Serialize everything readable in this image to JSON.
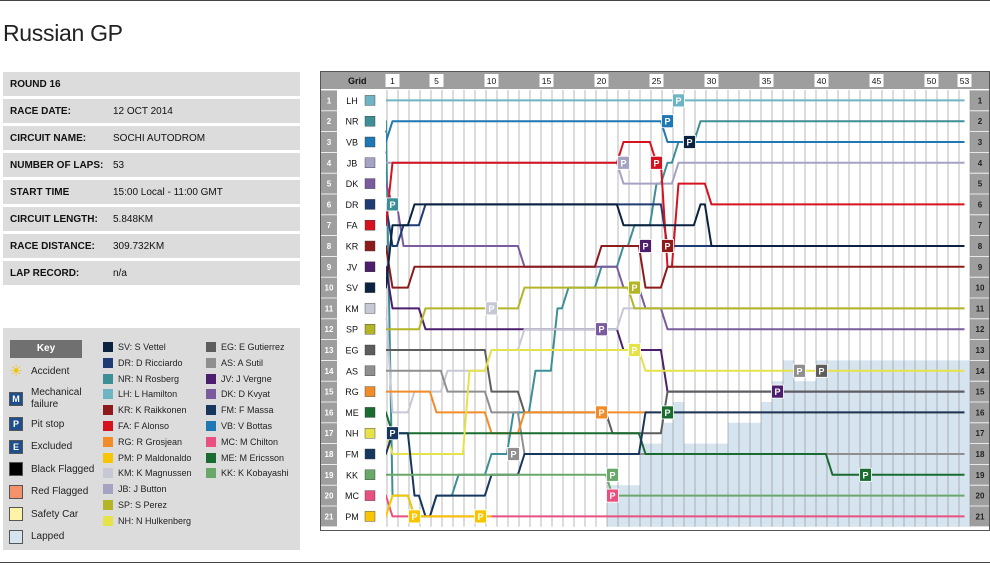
{
  "title": "Russian GP",
  "info": [
    {
      "label": "ROUND 16",
      "value": ""
    },
    {
      "label": "RACE DATE:",
      "value": "12 OCT 2014"
    },
    {
      "label": "CIRCUIT NAME:",
      "value": "SOCHI AUTODROM"
    },
    {
      "label": "NUMBER OF LAPS:",
      "value": "53"
    },
    {
      "label": "START TIME",
      "value": "15:00 Local - 11:00 GMT"
    },
    {
      "label": "CIRCUIT LENGTH:",
      "value": "5.848KM"
    },
    {
      "label": "RACE DISTANCE:",
      "value": "309.732KM"
    },
    {
      "label": "LAP RECORD:",
      "value": "n/a"
    }
  ],
  "key": {
    "title": "Key",
    "items": [
      {
        "label": "Accident",
        "symbol": "☀",
        "color": "#f2c200",
        "icon": "accident-icon"
      },
      {
        "label": "Mechanical failure",
        "symbol": "M",
        "color": "#1f4e8c",
        "icon": "mechanical-failure-icon"
      },
      {
        "label": "Pit stop",
        "symbol": "P",
        "color": "#1f4e8c",
        "icon": "pit-stop-icon"
      },
      {
        "label": "Excluded",
        "symbol": "E",
        "color": "#1f4e8c",
        "icon": "excluded-icon"
      },
      {
        "label": "Black Flagged",
        "symbol": "",
        "color": "#000000",
        "icon": "black-flag-icon"
      },
      {
        "label": "Red Flagged",
        "symbol": "",
        "color": "#f4926b",
        "icon": "red-flag-icon"
      },
      {
        "label": "Safety Car",
        "symbol": "",
        "color": "#fdf3a6",
        "icon": "safety-car-icon"
      },
      {
        "label": "Lapped",
        "symbol": "",
        "color": "#d6e4f0",
        "icon": "lapped-icon"
      }
    ],
    "drivers_col1": [
      {
        "label": "SV: S Vettel",
        "color": "#0b2341"
      },
      {
        "label": "DR: D Ricciardo",
        "color": "#1e3b73"
      },
      {
        "label": "NR: N Rosberg",
        "color": "#3d8f95"
      },
      {
        "label": "LH: L Hamilton",
        "color": "#6fb4c4"
      },
      {
        "label": "KR: K Raikkonen",
        "color": "#8e1b1b"
      },
      {
        "label": "FA: F Alonso",
        "color": "#d7121f"
      },
      {
        "label": "RG: R Grosjean",
        "color": "#f28c28"
      },
      {
        "label": "PM: P Maldonaldo",
        "color": "#f7c600"
      },
      {
        "label": "KM: K Magnussen",
        "color": "#c7c8d6"
      },
      {
        "label": "JB: J Button",
        "color": "#a5a3c3"
      },
      {
        "label": "SP: S Perez",
        "color": "#b3b527"
      },
      {
        "label": "NH: N Hulkenberg",
        "color": "#e6e24a"
      }
    ],
    "drivers_col2": [
      {
        "label": "EG: E Gutierrez",
        "color": "#5d5d5d"
      },
      {
        "label": "AS: A Sutil",
        "color": "#8f8f8f"
      },
      {
        "label": "JV: J Vergne",
        "color": "#4b1f6e"
      },
      {
        "label": "DK: D Kvyat",
        "color": "#7a5c9e"
      },
      {
        "label": "FM: F Massa",
        "color": "#17375e"
      },
      {
        "label": "VB: V Bottas",
        "color": "#1f77b4"
      },
      {
        "label": "MC: M Chilton",
        "color": "#e8517f"
      },
      {
        "label": "ME: M Ericsson",
        "color": "#1a6b2f"
      },
      {
        "label": "KK: K Kobayashi",
        "color": "#6aa86a"
      }
    ]
  },
  "chart_data": {
    "type": "line",
    "title": "",
    "x_header": "Grid",
    "laps": 53,
    "lap_ticks": [
      1,
      5,
      10,
      15,
      20,
      25,
      30,
      35,
      40,
      45,
      50,
      53
    ],
    "positions": [
      1,
      2,
      3,
      4,
      5,
      6,
      7,
      8,
      9,
      10,
      11,
      12,
      13,
      14,
      15,
      16,
      17,
      18,
      19,
      20,
      21
    ],
    "grid": [
      "LH",
      "NR",
      "VB",
      "JB",
      "DK",
      "DR",
      "FA",
      "KR",
      "JV",
      "SV",
      "KM",
      "SP",
      "EG",
      "AS",
      "RG",
      "ME",
      "NH",
      "FM",
      "KK",
      "MC",
      "PM"
    ],
    "colors": {
      "LH": "#6fb4c4",
      "NR": "#3d8f95",
      "VB": "#1f77b4",
      "JB": "#a5a3c3",
      "DK": "#7a5c9e",
      "DR": "#1e3b73",
      "FA": "#d7121f",
      "KR": "#8e1b1b",
      "JV": "#4b1f6e",
      "SV": "#0b2341",
      "KM": "#c7c8d6",
      "SP": "#b3b527",
      "EG": "#5d5d5d",
      "AS": "#8f8f8f",
      "RG": "#f28c28",
      "ME": "#1a6b2f",
      "NH": "#e6e24a",
      "FM": "#17375e",
      "KK": "#6aa86a",
      "MC": "#e8517f",
      "PM": "#f7c600"
    },
    "series": [
      {
        "name": "LH",
        "positions": {
          "0": 1,
          "53": 1
        }
      },
      {
        "name": "NR",
        "positions": {
          "0": 2,
          "1": 20,
          "3": 21,
          "5": 20,
          "7": 19,
          "10": 18,
          "12": 16,
          "14": 14,
          "16": 11,
          "17": 10,
          "20": 9,
          "22": 8,
          "23": 7,
          "25": 5,
          "26": 4,
          "27": 3,
          "29": 2,
          "53": 2
        }
      },
      {
        "name": "VB",
        "positions": {
          "0": 3,
          "1": 2,
          "25": 2,
          "26": 3,
          "28": 3,
          "29": 3,
          "53": 3
        }
      },
      {
        "name": "JB",
        "positions": {
          "0": 4,
          "1": 4,
          "21": 4,
          "22": 5,
          "26": 5,
          "27": 4,
          "53": 4
        }
      },
      {
        "name": "DK",
        "positions": {
          "0": 5,
          "1": 6,
          "2": 8,
          "5": 8,
          "10": 8,
          "13": 9,
          "20": 9,
          "22": 10,
          "24": 11,
          "26": 12,
          "30": 12,
          "53": 12
        }
      },
      {
        "name": "DR",
        "positions": {
          "0": 6,
          "1": 8,
          "2": 7,
          "4": 6,
          "20": 6,
          "21": 6,
          "25": 6,
          "26": 8,
          "53": 8
        }
      },
      {
        "name": "FA",
        "positions": {
          "0": 7,
          "1": 4,
          "21": 4,
          "22": 3,
          "24": 3,
          "25": 4,
          "26": 9,
          "27": 5,
          "29": 5,
          "30": 6,
          "53": 6
        }
      },
      {
        "name": "KR",
        "positions": {
          "0": 8,
          "1": 10,
          "3": 9,
          "5": 9,
          "20": 8,
          "22": 8,
          "24": 10,
          "26": 9,
          "53": 9
        }
      },
      {
        "name": "JV",
        "positions": {
          "0": 9,
          "1": 11,
          "4": 12,
          "20": 12,
          "22": 13,
          "24": 13,
          "26": 15,
          "53": 15
        }
      },
      {
        "name": "SV",
        "positions": {
          "0": 10,
          "1": 7,
          "3": 6,
          "4": 6,
          "20": 6,
          "22": 7,
          "24": 7,
          "26": 7,
          "29": 6,
          "30": 8,
          "53": 8
        }
      },
      {
        "name": "KM",
        "positions": {
          "0": 11,
          "1": 16,
          "3": 15,
          "6": 14,
          "10": 13,
          "13": 12,
          "20": 12,
          "22": 11,
          "24": 11,
          "26": 11,
          "53": 11
        }
      },
      {
        "name": "SP",
        "positions": {
          "0": 12,
          "1": 12,
          "4": 11,
          "10": 11,
          "13": 10,
          "20": 10,
          "23": 11,
          "26": 11,
          "30": 11,
          "53": 11
        }
      },
      {
        "name": "EG",
        "positions": {
          "0": 13,
          "1": 13,
          "5": 13,
          "10": 15,
          "13": 16,
          "19": 16,
          "21": 17,
          "25": 17,
          "26": 15,
          "53": 15
        }
      },
      {
        "name": "AS",
        "positions": {
          "0": 14,
          "1": 14,
          "6": 15,
          "10": 16,
          "13": 18,
          "20": 18,
          "24": 18,
          "53": 18
        }
      },
      {
        "name": "RG",
        "positions": {
          "0": 15,
          "1": 15,
          "5": 16,
          "10": 17,
          "13": 16,
          "20": 16,
          "22": 16,
          "53": 16
        }
      },
      {
        "name": "ME",
        "positions": {
          "0": 16,
          "1": 17,
          "5": 17,
          "10": 17,
          "20": 17,
          "24": 18,
          "26": 18,
          "40": 18,
          "41": 19,
          "53": 19
        }
      },
      {
        "name": "NH",
        "positions": {
          "0": 17,
          "1": 18,
          "5": 18,
          "8": 14,
          "10": 13,
          "13": 13,
          "20": 13,
          "24": 14,
          "26": 14,
          "53": 14
        }
      },
      {
        "name": "FM",
        "positions": {
          "0": 18,
          "1": 17,
          "3": 20,
          "4": 21,
          "5": 20,
          "10": 19,
          "13": 18,
          "20": 18,
          "24": 16,
          "26": 16,
          "53": 16
        }
      },
      {
        "name": "KK",
        "positions": {
          "0": 19,
          "1": 19,
          "5": 19,
          "20": 19,
          "21": 20,
          "53": 20
        }
      },
      {
        "name": "MC",
        "positions": {
          "0": 20,
          "1": 21,
          "3": 21,
          "7": 21,
          "21": 21,
          "53": 21
        }
      },
      {
        "name": "PM",
        "positions": {
          "0": 21,
          "1": 20,
          "3": 21,
          "7": 21,
          "10": 21
        }
      }
    ]
  }
}
